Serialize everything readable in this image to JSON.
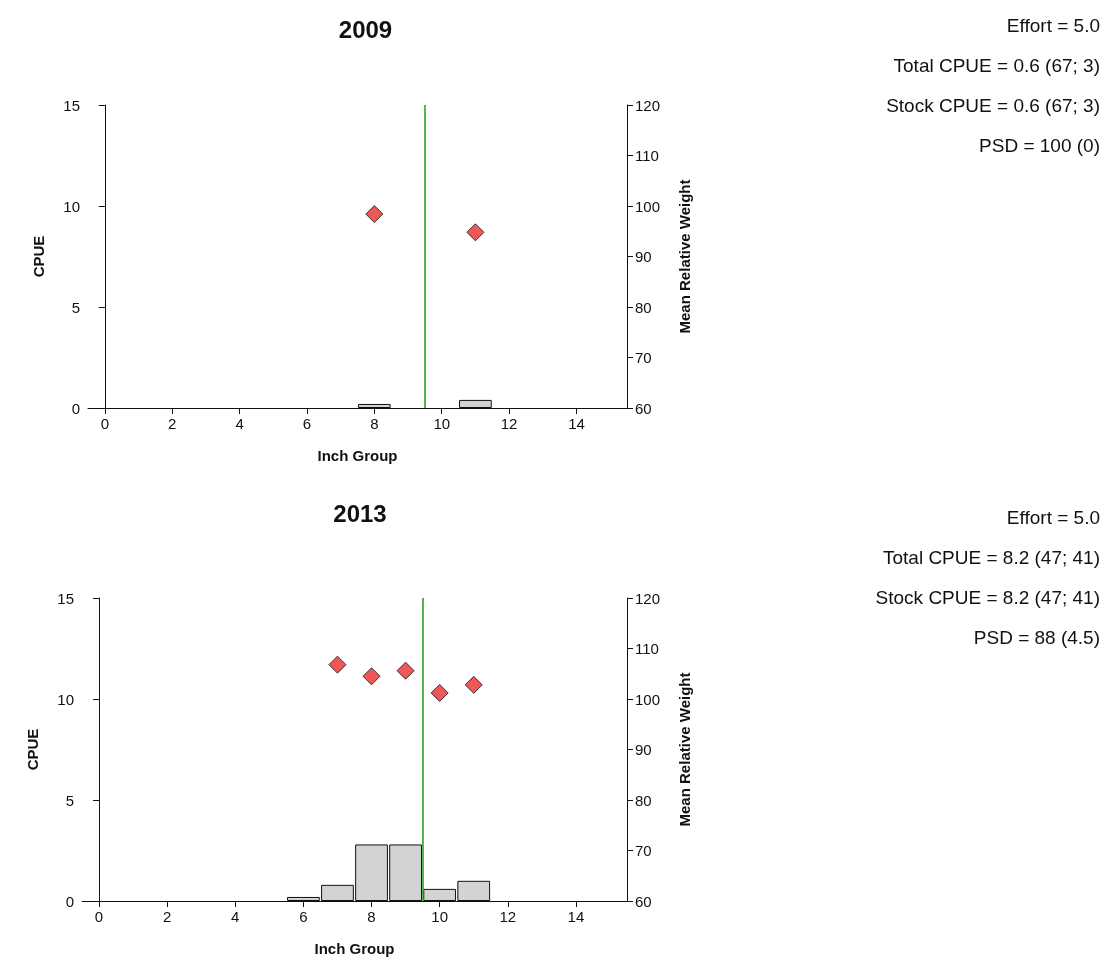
{
  "chart_data": [
    {
      "type": "bar",
      "title": "2009",
      "xlabel": "Inch Group",
      "ylabel": "CPUE",
      "y2label": "Mean Relative Weight",
      "series": [
        {
          "color": "#d3d3d3",
          "x": [
            8,
            11
          ],
          "values": [
            0.2,
            0.4
          ]
        },
        {
          "type": "scatter",
          "axis": "y2",
          "color": "#e83030",
          "x": [
            8,
            11
          ],
          "values": [
            98.4,
            94.8
          ]
        }
      ],
      "xlim": [
        -0.5,
        15.5
      ],
      "xticks": [
        0,
        2,
        4,
        6,
        8,
        10,
        12,
        14
      ],
      "ylim": [
        0,
        15
      ],
      "yticks": [
        0,
        5,
        10,
        15
      ],
      "y2lim": [
        60,
        120
      ],
      "y2ticks": [
        60,
        70,
        80,
        90,
        100,
        110,
        120
      ],
      "ref_lines": [
        {
          "axis": "x",
          "value": 9.5,
          "color": "#1a9c1a"
        }
      ],
      "marker": "diamond",
      "grid": false,
      "annotations": [
        "Effort = 5.0",
        "Total CPUE = 0.6 (67; 3)",
        "Stock CPUE = 0.6 (67; 3)",
        "PSD = 100 (0)"
      ]
    },
    {
      "type": "bar",
      "title": "2013",
      "xlabel": "Inch Group",
      "ylabel": "CPUE",
      "y2label": "Mean Relative Weight",
      "series": [
        {
          "color": "#d3d3d3",
          "x": [
            6,
            7,
            8,
            9,
            10,
            11
          ],
          "values": [
            0.2,
            0.8,
            2.8,
            2.8,
            0.6,
            1.0
          ]
        },
        {
          "type": "scatter",
          "axis": "y2",
          "color": "#e83030",
          "x": [
            7,
            8,
            9,
            10,
            11
          ],
          "values": [
            106.8,
            104.5,
            105.6,
            101.2,
            102.8
          ]
        }
      ],
      "xlim": [
        -0.5,
        15.5
      ],
      "xticks": [
        0,
        2,
        4,
        6,
        8,
        10,
        12,
        14
      ],
      "ylim": [
        0,
        15
      ],
      "yticks": [
        0,
        5,
        10,
        15
      ],
      "y2lim": [
        60,
        120
      ],
      "y2ticks": [
        60,
        70,
        80,
        90,
        100,
        110,
        120
      ],
      "ref_lines": [
        {
          "axis": "x",
          "value": 9.5,
          "color": "#1a9c1a"
        }
      ],
      "marker": "diamond",
      "grid": false,
      "annotations": [
        "Effort = 5.0",
        "Total CPUE = 8.2 (47; 41)",
        "Stock CPUE = 8.2 (47; 41)",
        "PSD = 88 (4.5)"
      ]
    }
  ]
}
